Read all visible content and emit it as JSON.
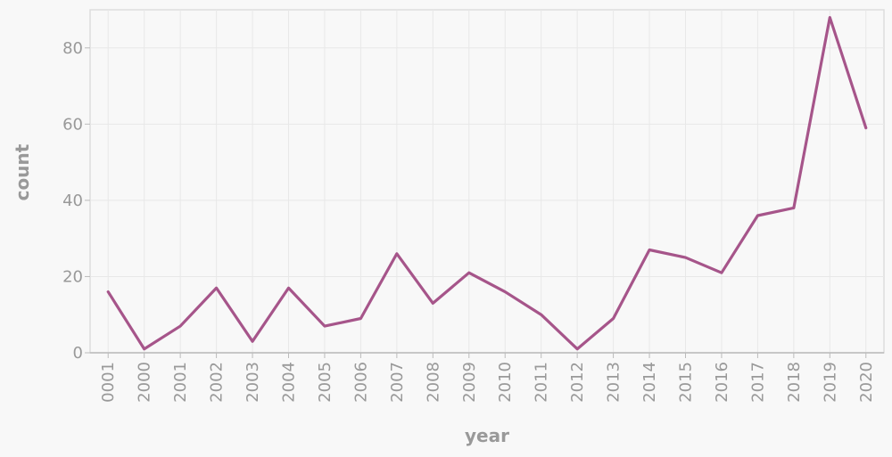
{
  "chart_data": {
    "type": "line",
    "title": "",
    "xlabel": "year",
    "ylabel": "count",
    "categories": [
      "0001",
      "2000",
      "2001",
      "2002",
      "2003",
      "2004",
      "2005",
      "2006",
      "2007",
      "2008",
      "2009",
      "2010",
      "2011",
      "2012",
      "2013",
      "2014",
      "2015",
      "2016",
      "2017",
      "2018",
      "2019",
      "2020"
    ],
    "series": [
      {
        "values": [
          16,
          1,
          7,
          17,
          3,
          17,
          7,
          9,
          26,
          13,
          21,
          16,
          10,
          1,
          9,
          27,
          25,
          21,
          36,
          38,
          88,
          59
        ]
      }
    ],
    "ylim": [
      0,
      90
    ],
    "yticks": [
      0,
      20,
      40,
      60,
      80
    ],
    "grid": true,
    "legend": "none",
    "colors": {
      "line": "#a6558a",
      "grid": "#e8e8e8",
      "axis": "#bbbbbb",
      "text": "#999999",
      "background": "#f8f8f8",
      "plot_background": "#f8f8f8"
    }
  }
}
